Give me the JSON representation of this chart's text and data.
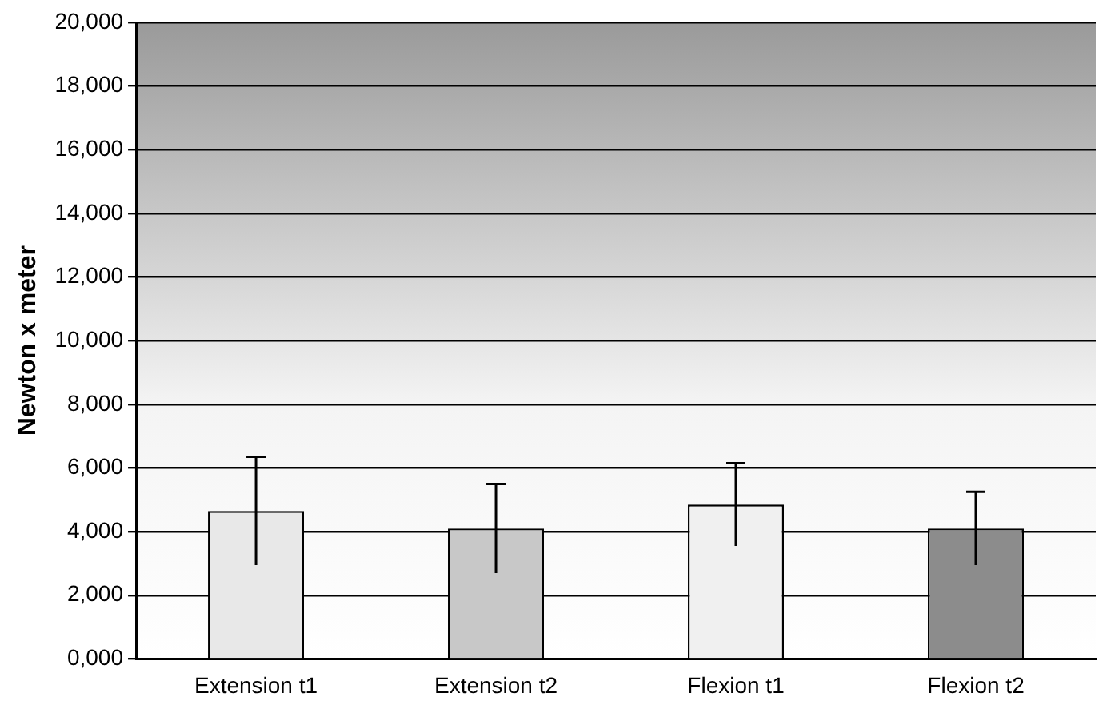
{
  "chart_data": {
    "type": "bar",
    "ylabel": "Newton x meter",
    "categories": [
      "Extension t1",
      "Extension t2",
      "Flexion t1",
      "Flexion t2"
    ],
    "values": [
      4650,
      4100,
      4850,
      4100
    ],
    "errors": [
      1700,
      1400,
      1300,
      1150
    ],
    "colors": [
      "#e8e8e8",
      "#c8c8c8",
      "#f0f0f0",
      "#8c8c8c"
    ],
    "ylim": [
      0,
      20000
    ],
    "yticks": [
      {
        "value": 0,
        "label": "0,000"
      },
      {
        "value": 2000,
        "label": "2,000"
      },
      {
        "value": 4000,
        "label": "4,000"
      },
      {
        "value": 6000,
        "label": "6,000"
      },
      {
        "value": 8000,
        "label": "8,000"
      },
      {
        "value": 10000,
        "label": "10,000"
      },
      {
        "value": 12000,
        "label": "12,000"
      },
      {
        "value": 14000,
        "label": "14,000"
      },
      {
        "value": 16000,
        "label": "16,000"
      },
      {
        "value": 18000,
        "label": "18,000"
      },
      {
        "value": 20000,
        "label": "20,000"
      }
    ],
    "grid": "y",
    "legend": false
  }
}
